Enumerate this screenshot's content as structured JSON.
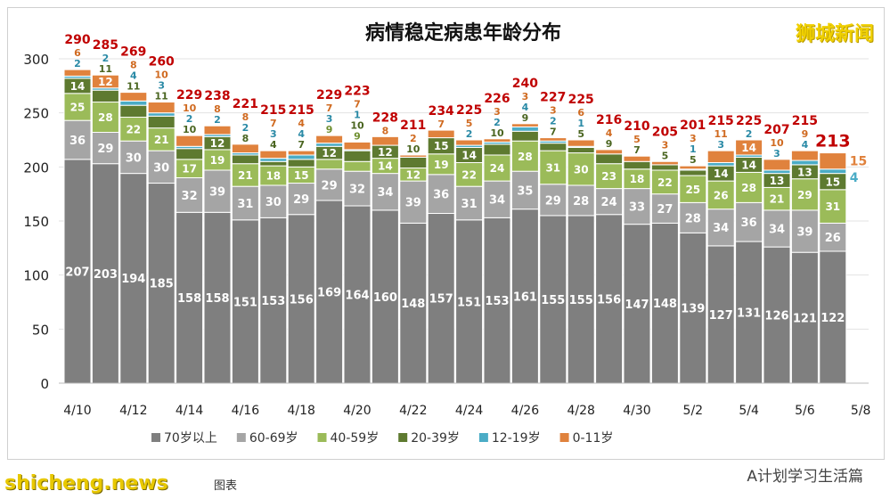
{
  "chart_data": {
    "type": "bar",
    "stacked": true,
    "title": "病情稳定病患年龄分布",
    "ylim": [
      0,
      300
    ],
    "yticks": [
      0,
      50,
      100,
      150,
      200,
      250,
      300
    ],
    "grid": true,
    "legend_position": "bottom",
    "categories": [
      "4/10",
      "4/11",
      "4/12",
      "4/13",
      "4/14",
      "4/15",
      "4/16",
      "4/17",
      "4/18",
      "4/19",
      "4/20",
      "4/21",
      "4/22",
      "4/23",
      "4/24",
      "4/25",
      "4/26",
      "4/27",
      "4/28",
      "4/29",
      "4/30",
      "5/1",
      "5/2",
      "5/3",
      "5/4",
      "5/5",
      "5/6",
      "5/7"
    ],
    "xtick_labels": [
      "4/10",
      "4/12",
      "4/14",
      "4/16",
      "4/18",
      "4/20",
      "4/22",
      "4/24",
      "4/26",
      "4/28",
      "4/30",
      "5/2",
      "5/4",
      "5/6",
      "5/8"
    ],
    "series": [
      {
        "name": "70岁以上",
        "color": "#7f7f7f",
        "values": [
          207,
          203,
          194,
          185,
          158,
          158,
          151,
          153,
          156,
          169,
          164,
          160,
          148,
          157,
          151,
          153,
          161,
          155,
          155,
          156,
          147,
          148,
          139,
          127,
          131,
          126,
          121,
          122
        ]
      },
      {
        "name": "60-69岁",
        "color": "#a5a5a5",
        "values": [
          36,
          29,
          30,
          30,
          32,
          39,
          31,
          30,
          29,
          29,
          32,
          34,
          39,
          36,
          31,
          34,
          35,
          29,
          28,
          24,
          33,
          27,
          28,
          34,
          36,
          34,
          39,
          26
        ]
      },
      {
        "name": "40-59岁",
        "color": "#9bbb59",
        "values": [
          25,
          28,
          22,
          21,
          17,
          19,
          21,
          18,
          15,
          9,
          9,
          14,
          12,
          19,
          22,
          24,
          28,
          31,
          30,
          23,
          18,
          22,
          25,
          26,
          28,
          21,
          29,
          31
        ]
      },
      {
        "name": "20-39岁",
        "color": "#5e7a30",
        "values": [
          14,
          11,
          11,
          11,
          10,
          12,
          8,
          4,
          7,
          12,
          10,
          12,
          10,
          15,
          14,
          10,
          9,
          7,
          5,
          9,
          7,
          5,
          5,
          14,
          14,
          13,
          13,
          15
        ]
      },
      {
        "name": "12-19岁",
        "color": "#4bacc6",
        "values": [
          2,
          2,
          4,
          3,
          2,
          2,
          2,
          3,
          4,
          3,
          1,
          0,
          0,
          0,
          2,
          2,
          4,
          2,
          1,
          0,
          0,
          0,
          1,
          3,
          2,
          3,
          4,
          4
        ]
      },
      {
        "name": "0-11岁",
        "color": "#e0823d",
        "values": [
          6,
          12,
          8,
          10,
          10,
          8,
          8,
          7,
          4,
          7,
          7,
          8,
          2,
          7,
          5,
          3,
          3,
          3,
          6,
          4,
          5,
          3,
          3,
          11,
          14,
          10,
          9,
          15
        ]
      }
    ],
    "totals": [
      290,
      285,
      269,
      260,
      229,
      238,
      221,
      215,
      215,
      229,
      223,
      228,
      211,
      234,
      225,
      226,
      240,
      227,
      225,
      216,
      210,
      205,
      201,
      215,
      225,
      207,
      215,
      213
    ]
  },
  "watermarks": {
    "top_right": "狮城新闻",
    "bottom_right": "A计划学习生活篇",
    "bottom_left": "shicheng.news",
    "footer": "图表"
  }
}
